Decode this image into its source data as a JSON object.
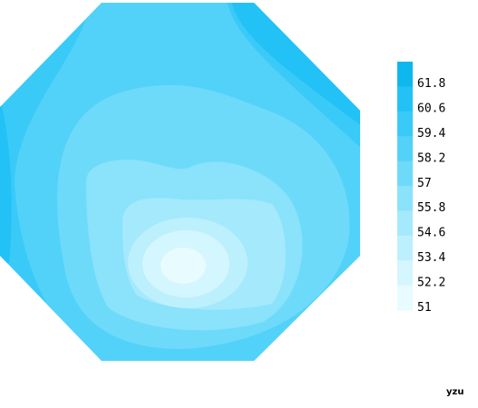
{
  "chart_data": {
    "type": "contour",
    "levels": [
      51,
      52.2,
      53.4,
      54.6,
      55.8,
      57,
      58.2,
      59.4,
      60.6,
      61.8
    ],
    "colors": [
      "#e8fbff",
      "#d4f6fe",
      "#bdf0fd",
      "#a4e9fc",
      "#8ae2fb",
      "#6edafa",
      "#52d2f9",
      "#3acaf8",
      "#22c2f6",
      "#0fb7ef"
    ],
    "annotation": "yzu"
  }
}
